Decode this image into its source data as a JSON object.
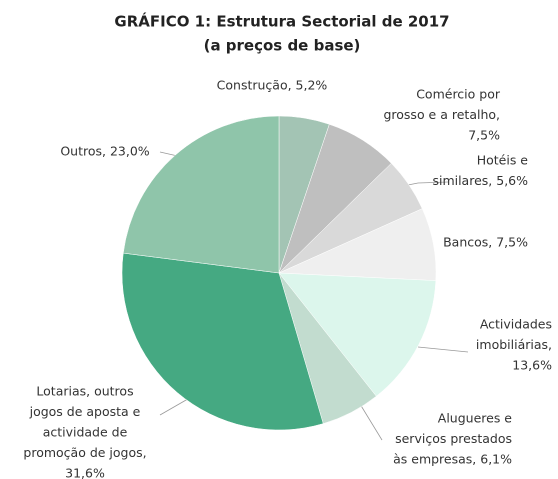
{
  "chart_data": {
    "type": "pie",
    "title": "GRÁFICO 1:  Estrutura Sectorial de 2017",
    "subtitle": "(a preços de base)",
    "labels": [
      [
        "Construção, 5,2%"
      ],
      [
        "Comércio por",
        "grosso e a retalho,",
        "7,5%"
      ],
      [
        "Hotéis e",
        "similares,  5,6%"
      ],
      [
        "Bancos, 7,5%"
      ],
      [
        "Actividades",
        "imobiliárias,",
        "13,6%"
      ],
      [
        "Alugueres e",
        "serviços prestados",
        "às empresas, 6,1%"
      ],
      [
        "Lotarias, outros",
        "jogos de aposta e",
        "actividade de",
        "promoção de jogos,",
        "31,6%"
      ],
      [
        "Outros, 23,0%"
      ]
    ],
    "values": [
      5.2,
      7.5,
      5.6,
      7.5,
      13.6,
      6.1,
      31.6,
      23.0
    ],
    "colors": [
      "#a3c4b4",
      "#bfbfbf",
      "#d9d9d9",
      "#efefef",
      "#dcf6ec",
      "#c2dccf",
      "#45a982",
      "#8fc5aa"
    ]
  }
}
